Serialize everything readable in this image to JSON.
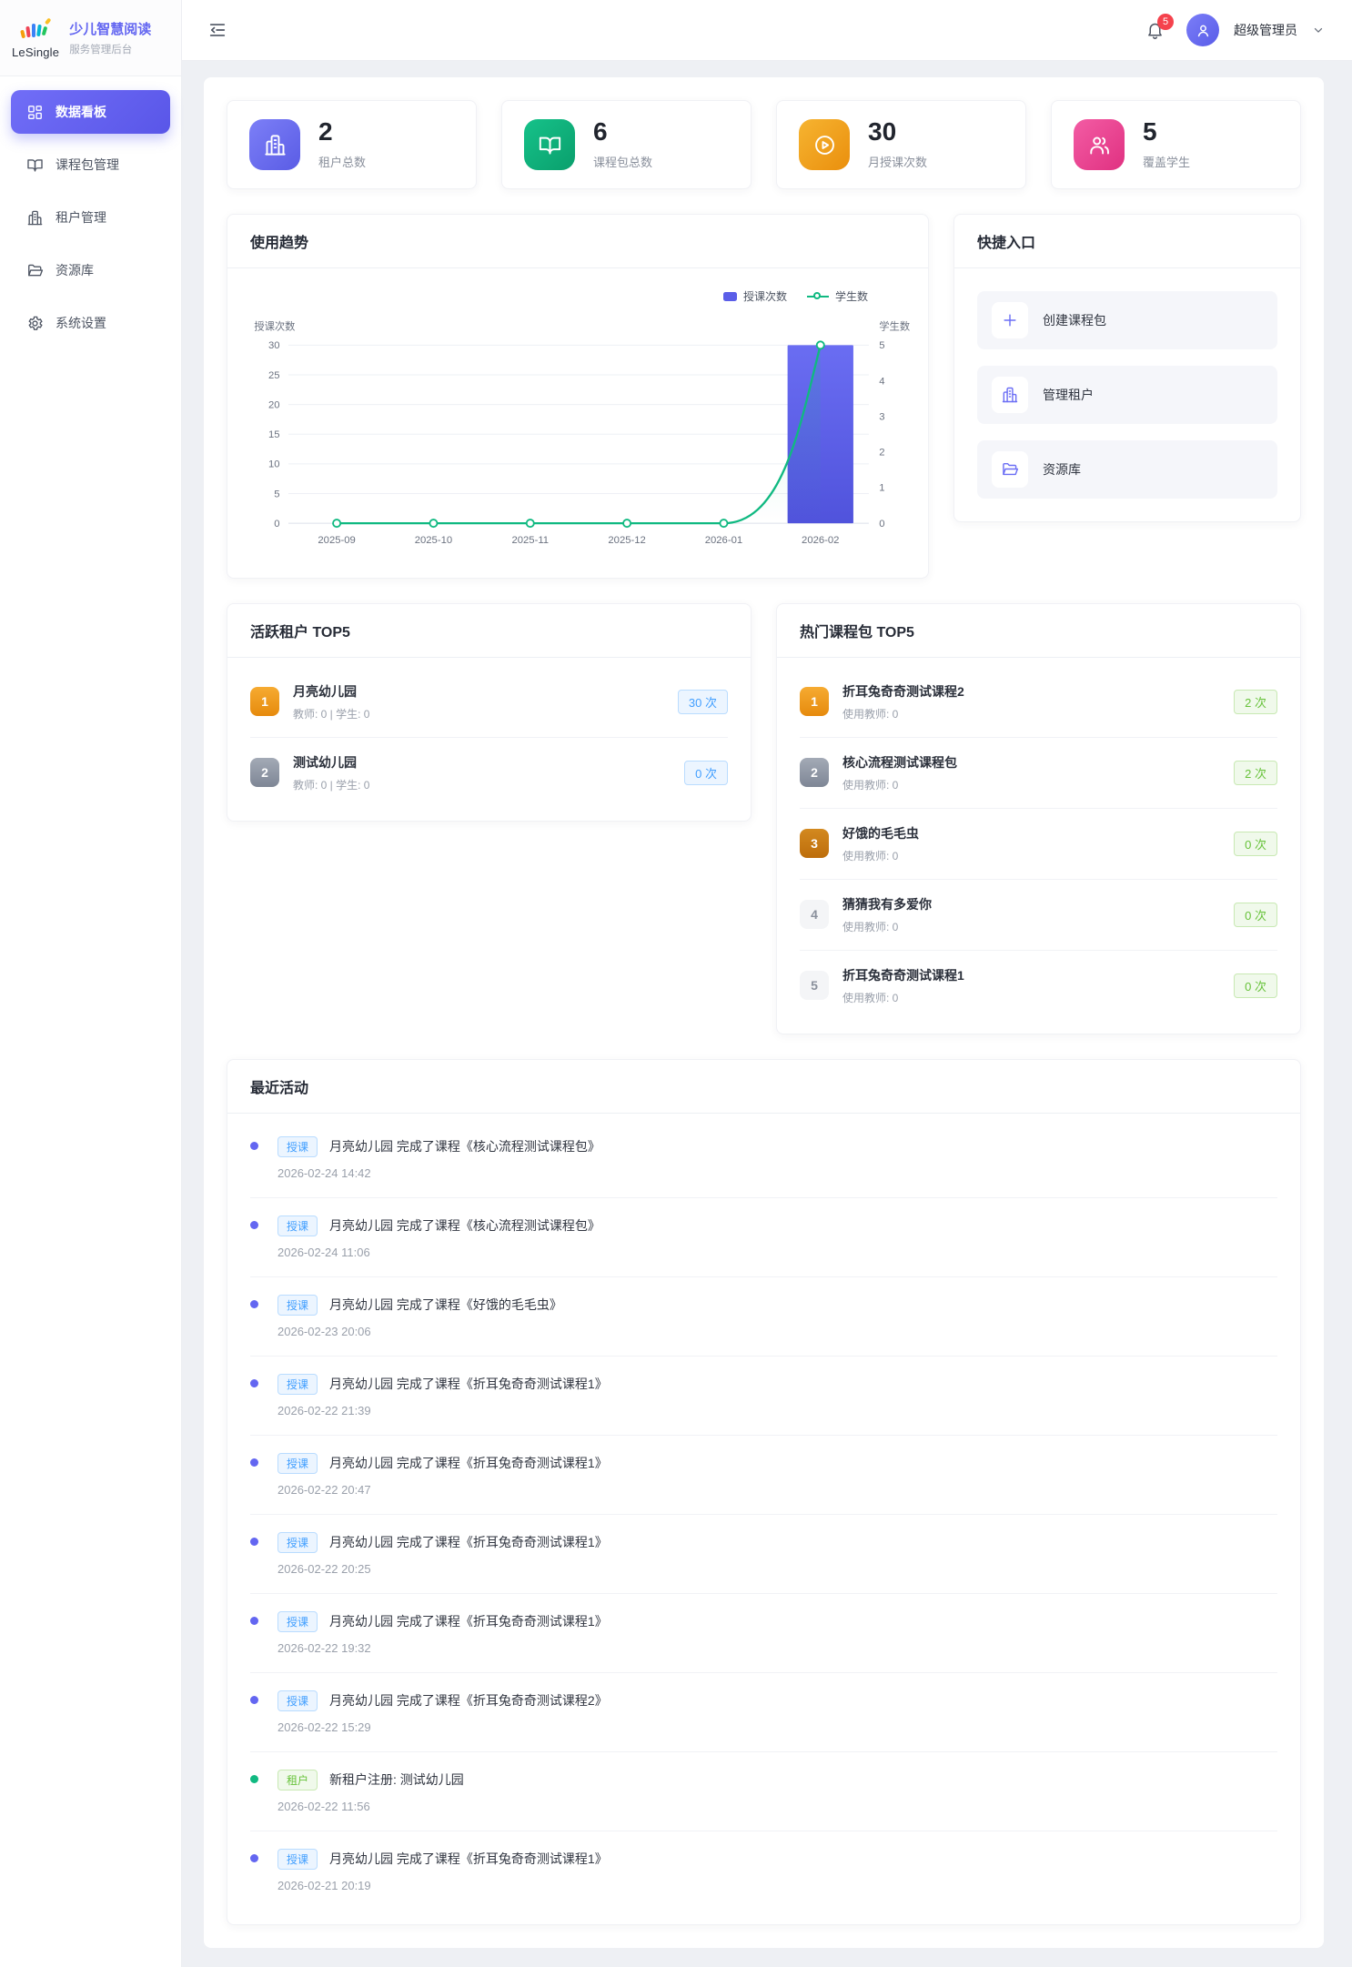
{
  "sidebar": {
    "logo": {
      "brand": "LeSingle",
      "title": "少儿智慧阅读",
      "subtitle": "服务管理后台",
      "title_color": "#6366f1"
    },
    "items": [
      {
        "label": "数据看板",
        "icon": "dashboard-icon",
        "state": "active"
      },
      {
        "label": "课程包管理",
        "icon": "book-icon",
        "state": "rest"
      },
      {
        "label": "租户管理",
        "icon": "building-icon",
        "state": "rest"
      },
      {
        "label": "资源库",
        "icon": "folder-icon",
        "state": "rest"
      },
      {
        "label": "系统设置",
        "icon": "gear-icon",
        "state": "rest"
      }
    ]
  },
  "header": {
    "collapse_icon": "fold-icon",
    "notification": {
      "icon": "bell-icon",
      "badge": "5",
      "badge_color": "#f5424d"
    },
    "user": {
      "name": "超级管理员",
      "avatar_icon": "person-icon",
      "chevron_icon": "chevron-down-icon"
    }
  },
  "stats": [
    {
      "value": "2",
      "label": "租户总数",
      "icon": "building-icon",
      "tone": "purple",
      "color": "#6366f1"
    },
    {
      "value": "6",
      "label": "课程包总数",
      "icon": "book-icon",
      "tone": "green",
      "color": "#10b981"
    },
    {
      "value": "30",
      "label": "月授课次数",
      "icon": "play-icon",
      "tone": "orange",
      "color": "#f59e0b"
    },
    {
      "value": "5",
      "label": "覆盖学生",
      "icon": "users-icon",
      "tone": "pink",
      "color": "#ec4899"
    }
  ],
  "trend": {
    "title": "使用趋势"
  },
  "chart_data": {
    "type": "bar+line",
    "categories": [
      "2025-09",
      "2025-10",
      "2025-11",
      "2025-12",
      "2026-01",
      "2026-02"
    ],
    "series": [
      {
        "name": "授课次数",
        "type": "bar",
        "axis": "left",
        "values": [
          0,
          0,
          0,
          0,
          0,
          30
        ],
        "color": "#5b5ee8"
      },
      {
        "name": "学生数",
        "type": "line",
        "axis": "right",
        "values": [
          0,
          0,
          0,
          0,
          0,
          5
        ],
        "color": "#10b981"
      }
    ],
    "left_axis": {
      "name": "授课次数",
      "min": 0,
      "max": 30,
      "ticks": [
        0,
        5,
        10,
        15,
        20,
        25,
        30
      ]
    },
    "right_axis": {
      "name": "学生数",
      "min": 0,
      "max": 5,
      "ticks": [
        0,
        1,
        2,
        3,
        4,
        5
      ]
    },
    "grid": true,
    "legend_position": "top-right"
  },
  "quick": {
    "title": "快捷入口",
    "items": [
      {
        "label": "创建课程包",
        "icon": "plus-icon"
      },
      {
        "label": "管理租户",
        "icon": "building-icon"
      },
      {
        "label": "资源库",
        "icon": "folder-icon"
      }
    ]
  },
  "top_tenants": {
    "title": "活跃租户 TOP5",
    "items": [
      {
        "rank": "1",
        "rank_style": "gold",
        "name": "月亮幼儿园",
        "meta": "教师: 0 | 学生: 0",
        "count": "30 次",
        "count_style": "blue"
      },
      {
        "rank": "2",
        "rank_style": "silver",
        "name": "测试幼儿园",
        "meta": "教师: 0 | 学生: 0",
        "count": "0 次",
        "count_style": "blue"
      }
    ]
  },
  "top_courses": {
    "title": "热门课程包 TOP5",
    "items": [
      {
        "rank": "1",
        "rank_style": "gold",
        "name": "折耳兔奇奇测试课程2",
        "meta": "使用教师: 0",
        "count": "2 次",
        "count_style": "green"
      },
      {
        "rank": "2",
        "rank_style": "silver",
        "name": "核心流程测试课程包",
        "meta": "使用教师: 0",
        "count": "2 次",
        "count_style": "green"
      },
      {
        "rank": "3",
        "rank_style": "bronze",
        "name": "好饿的毛毛虫",
        "meta": "使用教师: 0",
        "count": "0 次",
        "count_style": "green"
      },
      {
        "rank": "4",
        "rank_style": "plain",
        "name": "猜猜我有多爱你",
        "meta": "使用教师: 0",
        "count": "0 次",
        "count_style": "green"
      },
      {
        "rank": "5",
        "rank_style": "plain",
        "name": "折耳兔奇奇测试课程1",
        "meta": "使用教师: 0",
        "count": "0 次",
        "count_style": "green"
      }
    ]
  },
  "activities": {
    "title": "最近活动",
    "items": [
      {
        "badge": "授课",
        "badge_style": "blue",
        "dot": "blue",
        "text": "月亮幼儿园 完成了课程《核心流程测试课程包》",
        "time": "2026-02-24 14:42"
      },
      {
        "badge": "授课",
        "badge_style": "blue",
        "dot": "blue",
        "text": "月亮幼儿园 完成了课程《核心流程测试课程包》",
        "time": "2026-02-24 11:06"
      },
      {
        "badge": "授课",
        "badge_style": "blue",
        "dot": "blue",
        "text": "月亮幼儿园 完成了课程《好饿的毛毛虫》",
        "time": "2026-02-23 20:06"
      },
      {
        "badge": "授课",
        "badge_style": "blue",
        "dot": "blue",
        "text": "月亮幼儿园 完成了课程《折耳兔奇奇测试课程1》",
        "time": "2026-02-22 21:39"
      },
      {
        "badge": "授课",
        "badge_style": "blue",
        "dot": "blue",
        "text": "月亮幼儿园 完成了课程《折耳兔奇奇测试课程1》",
        "time": "2026-02-22 20:47"
      },
      {
        "badge": "授课",
        "badge_style": "blue",
        "dot": "blue",
        "text": "月亮幼儿园 完成了课程《折耳兔奇奇测试课程1》",
        "time": "2026-02-22 20:25"
      },
      {
        "badge": "授课",
        "badge_style": "blue",
        "dot": "blue",
        "text": "月亮幼儿园 完成了课程《折耳兔奇奇测试课程1》",
        "time": "2026-02-22 19:32"
      },
      {
        "badge": "授课",
        "badge_style": "blue",
        "dot": "blue",
        "text": "月亮幼儿园 完成了课程《折耳兔奇奇测试课程2》",
        "time": "2026-02-22 15:29"
      },
      {
        "badge": "租户",
        "badge_style": "green",
        "dot": "green",
        "text": "新租户注册: 测试幼儿园",
        "time": "2026-02-22 11:56"
      },
      {
        "badge": "授课",
        "badge_style": "blue",
        "dot": "blue",
        "text": "月亮幼儿园 完成了课程《折耳兔奇奇测试课程1》",
        "time": "2026-02-21 20:19"
      }
    ]
  }
}
